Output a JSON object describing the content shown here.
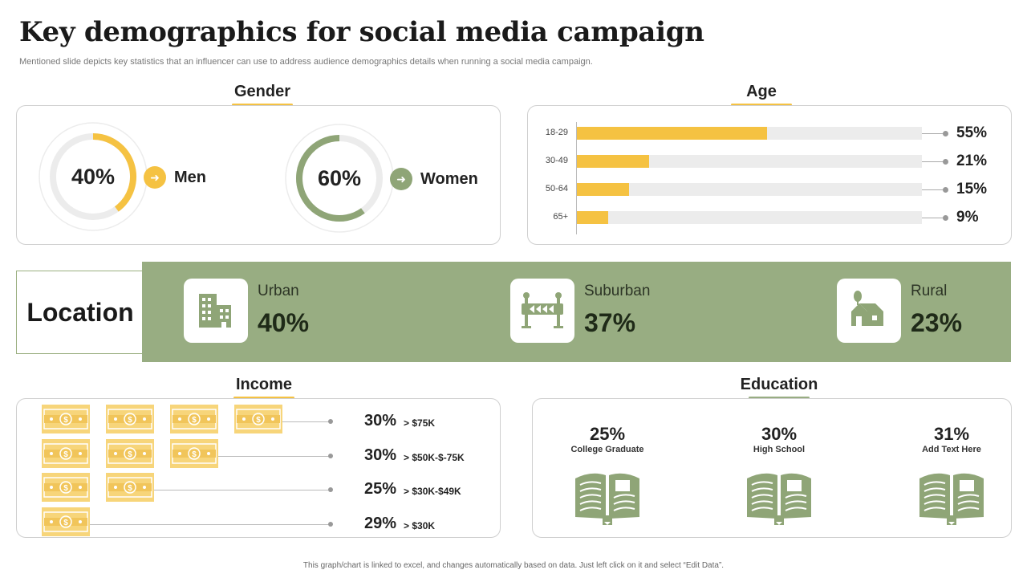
{
  "page": {
    "title": "Key demographics for social media campaign",
    "subtitle": "Mentioned slide depicts key statistics that an influencer can use to address audience demographics details when running a social media campaign.",
    "footer": "This graph/chart is linked to excel, and changes automatically based on data. Just left click on it and select “Edit Data”."
  },
  "colors": {
    "accent_yellow": "#f5c242",
    "accent_green": "#98ad82",
    "track": "#ececec",
    "note_fill": "#f7d57a"
  },
  "gender": {
    "heading": "Gender",
    "items": [
      {
        "label": "Men",
        "value": 40,
        "display": "40%",
        "color": "#f5c242"
      },
      {
        "label": "Women",
        "value": 60,
        "display": "60%",
        "color": "#8fa577"
      }
    ]
  },
  "age": {
    "heading": "Age",
    "items": [
      {
        "label": "18-29",
        "value": 55,
        "display": "55%"
      },
      {
        "label": "30-49",
        "value": 21,
        "display": "21%"
      },
      {
        "label": "50-64",
        "value": 15,
        "display": "15%"
      },
      {
        "label": "65+",
        "value": 9,
        "display": "9%"
      }
    ]
  },
  "location": {
    "heading": "Location",
    "items": [
      {
        "name": "Urban",
        "value": "40%",
        "icon": "building-icon"
      },
      {
        "name": "Suburban",
        "value": "37%",
        "icon": "road-barrier-icon"
      },
      {
        "name": "Rural",
        "value": "23%",
        "icon": "farmhouse-icon"
      }
    ]
  },
  "income": {
    "heading": "Income",
    "items": [
      {
        "pct": "30%",
        "label": "> $75K",
        "notes": 4
      },
      {
        "pct": "30%",
        "label": "> $50K-$-75K",
        "notes": 3
      },
      {
        "pct": "25%",
        "label": "> $30K-$49K",
        "notes": 2
      },
      {
        "pct": "29%",
        "label": "> $30K",
        "notes": 1
      }
    ]
  },
  "education": {
    "heading": "Education",
    "items": [
      {
        "pct": "25%",
        "label": "College Graduate"
      },
      {
        "pct": "30%",
        "label": "High School"
      },
      {
        "pct": "31%",
        "label": "Add Text Here"
      }
    ]
  },
  "chart_data": [
    {
      "type": "pie",
      "title": "Gender",
      "categories": [
        "Men",
        "Women"
      ],
      "values": [
        40,
        60
      ]
    },
    {
      "type": "bar",
      "title": "Age",
      "categories": [
        "18-29",
        "30-49",
        "50-64",
        "65+"
      ],
      "values": [
        55,
        21,
        15,
        9
      ],
      "ylim": [
        0,
        100
      ],
      "orientation": "horizontal"
    },
    {
      "type": "table",
      "title": "Location",
      "categories": [
        "Urban",
        "Suburban",
        "Rural"
      ],
      "values": [
        40,
        37,
        23
      ]
    },
    {
      "type": "table",
      "title": "Income",
      "categories": [
        "> $75K",
        "> $50K-$-75K",
        "> $30K-$49K",
        "> $30K"
      ],
      "values": [
        30,
        30,
        25,
        29
      ]
    },
    {
      "type": "table",
      "title": "Education",
      "categories": [
        "College Graduate",
        "High School",
        "Add Text Here"
      ],
      "values": [
        25,
        30,
        31
      ]
    }
  ]
}
